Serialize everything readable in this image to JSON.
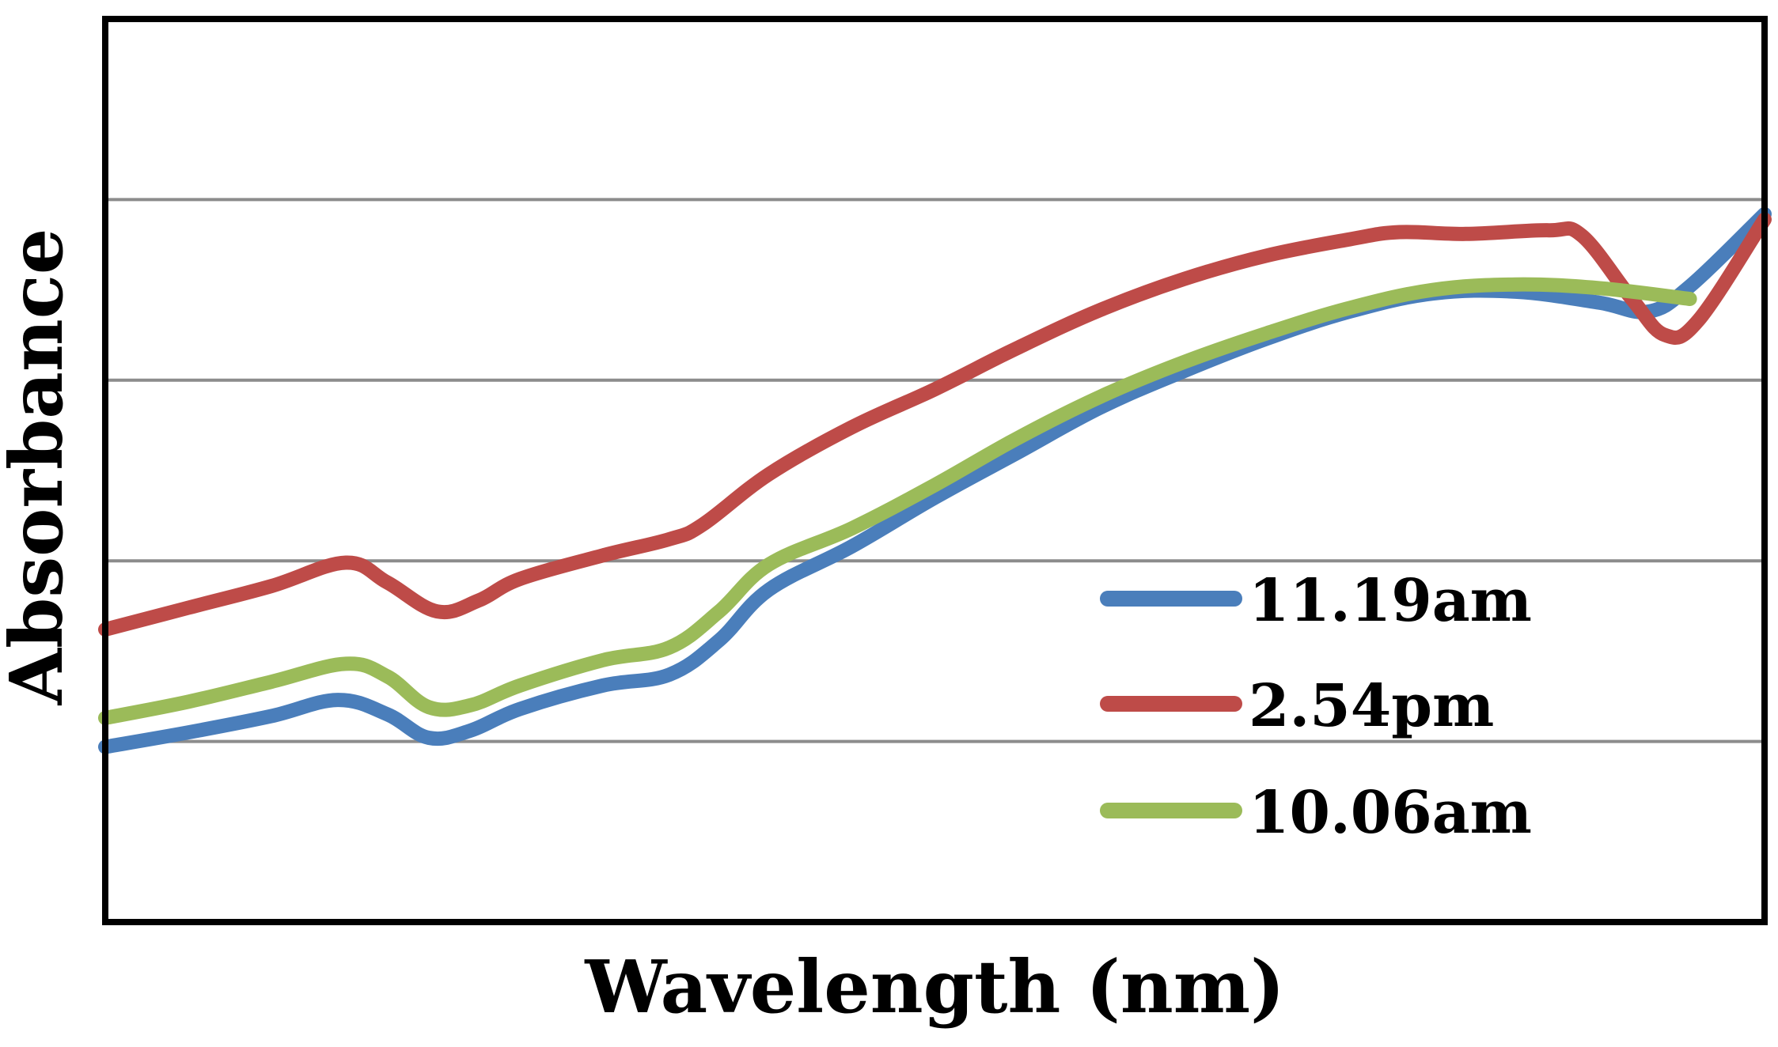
{
  "chart_data": {
    "type": "line",
    "title": "",
    "xlabel": "Wavelength (nm)",
    "ylabel": "Absorbance",
    "xlim": [
      0,
      100
    ],
    "ylim": [
      0,
      5
    ],
    "x_ticks_visible": false,
    "y_ticks_visible": false,
    "grid": true,
    "gridlines_y": [
      1,
      2,
      3,
      4
    ],
    "legend_position": "bottom-right",
    "series": [
      {
        "name": "11.19am",
        "color": "#4a7ebb",
        "points": [
          [
            0,
            0.97
          ],
          [
            5,
            1.05
          ],
          [
            10,
            1.14
          ],
          [
            14,
            1.23
          ],
          [
            17,
            1.15
          ],
          [
            19.5,
            1.02
          ],
          [
            22,
            1.06
          ],
          [
            25,
            1.18
          ],
          [
            30,
            1.31
          ],
          [
            34,
            1.37
          ],
          [
            37,
            1.56
          ],
          [
            40,
            1.84
          ],
          [
            45,
            2.08
          ],
          [
            50,
            2.35
          ],
          [
            55,
            2.6
          ],
          [
            60,
            2.85
          ],
          [
            65,
            3.05
          ],
          [
            70,
            3.23
          ],
          [
            75,
            3.38
          ],
          [
            80,
            3.48
          ],
          [
            85,
            3.49
          ],
          [
            90,
            3.43
          ],
          [
            93,
            3.38
          ],
          [
            95.5,
            3.52
          ],
          [
            100,
            3.92
          ]
        ]
      },
      {
        "name": "2.54pm",
        "color": "#be4b48",
        "points": [
          [
            0,
            1.62
          ],
          [
            5,
            1.74
          ],
          [
            10,
            1.86
          ],
          [
            14.5,
            1.99
          ],
          [
            17,
            1.88
          ],
          [
            20,
            1.72
          ],
          [
            22.5,
            1.78
          ],
          [
            25,
            1.9
          ],
          [
            30,
            2.03
          ],
          [
            34,
            2.12
          ],
          [
            36,
            2.2
          ],
          [
            40,
            2.48
          ],
          [
            45,
            2.74
          ],
          [
            50,
            2.95
          ],
          [
            55,
            3.18
          ],
          [
            60,
            3.39
          ],
          [
            65,
            3.56
          ],
          [
            70,
            3.69
          ],
          [
            75,
            3.78
          ],
          [
            78,
            3.82
          ],
          [
            82,
            3.81
          ],
          [
            87,
            3.83
          ],
          [
            89,
            3.8
          ],
          [
            92,
            3.45
          ],
          [
            94,
            3.25
          ],
          [
            96,
            3.33
          ],
          [
            100,
            3.89
          ]
        ]
      },
      {
        "name": "10.06am",
        "color": "#9bbb59",
        "points": [
          [
            0,
            1.13
          ],
          [
            5,
            1.22
          ],
          [
            10,
            1.33
          ],
          [
            14.5,
            1.43
          ],
          [
            17,
            1.36
          ],
          [
            19.5,
            1.19
          ],
          [
            22,
            1.2
          ],
          [
            25,
            1.31
          ],
          [
            30,
            1.45
          ],
          [
            34,
            1.52
          ],
          [
            37,
            1.72
          ],
          [
            40,
            1.98
          ],
          [
            45,
            2.18
          ],
          [
            50,
            2.42
          ],
          [
            55,
            2.68
          ],
          [
            60,
            2.91
          ],
          [
            65,
            3.1
          ],
          [
            70,
            3.26
          ],
          [
            75,
            3.4
          ],
          [
            80,
            3.5
          ],
          [
            85,
            3.53
          ],
          [
            90,
            3.51
          ],
          [
            95.5,
            3.45
          ]
        ]
      }
    ]
  }
}
